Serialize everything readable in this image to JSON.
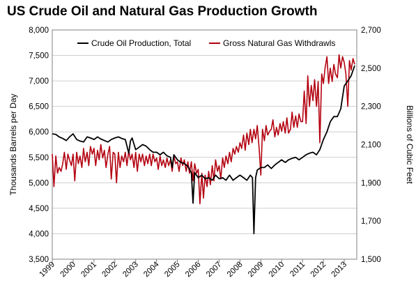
{
  "chart_data": {
    "type": "line",
    "title": "US Crude Oil and Natural Gas Production Growth",
    "ylabel": "Thousands Barrels per Day",
    "y2label": "Billions of Cubic Feet",
    "ylim": [
      3500,
      8000
    ],
    "y2lim": [
      1500,
      2700
    ],
    "xlim": [
      1999,
      2013.6
    ],
    "grid": true,
    "legend": "top",
    "x_ticks": [
      "1999",
      "2000",
      "2001",
      "2002",
      "2003",
      "2004",
      "2005",
      "2006",
      "2007",
      "2008",
      "2009",
      "2010",
      "2011",
      "2012",
      "2013"
    ],
    "y_ticks": [
      "3,500",
      "4,000",
      "4,500",
      "5,000",
      "5,500",
      "6,000",
      "6,500",
      "7,000",
      "7,500",
      "8,000"
    ],
    "y2_ticks": [
      "1,500",
      "1,700",
      "1,900",
      "2,100",
      "2,300",
      "2,500",
      "2,700"
    ],
    "series": [
      {
        "name": "Crude Oil Production, Total",
        "axis": "left",
        "color": "#000000",
        "x": [
          1999.0,
          1999.17,
          1999.33,
          1999.5,
          1999.67,
          1999.83,
          2000.0,
          2000.17,
          2000.33,
          2000.5,
          2000.67,
          2000.83,
          2001.0,
          2001.17,
          2001.33,
          2001.5,
          2001.67,
          2001.83,
          2002.0,
          2002.17,
          2002.33,
          2002.5,
          2002.67,
          2002.75,
          2002.83,
          2003.0,
          2003.17,
          2003.33,
          2003.5,
          2003.67,
          2003.83,
          2004.0,
          2004.17,
          2004.33,
          2004.5,
          2004.67,
          2004.75,
          2004.83,
          2005.0,
          2005.17,
          2005.33,
          2005.5,
          2005.67,
          2005.75,
          2005.83,
          2006.0,
          2006.17,
          2006.33,
          2006.5,
          2006.67,
          2006.83,
          2007.0,
          2007.17,
          2007.33,
          2007.5,
          2007.67,
          2007.83,
          2008.0,
          2008.17,
          2008.33,
          2008.5,
          2008.6,
          2008.67,
          2008.75,
          2008.83,
          2009.0,
          2009.17,
          2009.33,
          2009.5,
          2009.67,
          2009.83,
          2010.0,
          2010.17,
          2010.33,
          2010.5,
          2010.67,
          2010.83,
          2011.0,
          2011.17,
          2011.33,
          2011.5,
          2011.67,
          2011.83,
          2012.0,
          2012.17,
          2012.33,
          2012.5,
          2012.67,
          2012.83,
          2013.0,
          2013.17,
          2013.33,
          2013.5
        ],
        "values": [
          5960,
          5950,
          5900,
          5870,
          5830,
          5900,
          5960,
          5850,
          5820,
          5800,
          5900,
          5880,
          5850,
          5900,
          5860,
          5830,
          5800,
          5850,
          5880,
          5900,
          5870,
          5850,
          5580,
          5820,
          5880,
          5650,
          5700,
          5750,
          5720,
          5650,
          5600,
          5600,
          5550,
          5600,
          5530,
          5500,
          5300,
          5550,
          5450,
          5400,
          5380,
          5320,
          5200,
          4600,
          5200,
          5100,
          5150,
          5080,
          5100,
          5050,
          5150,
          5080,
          5100,
          5050,
          5150,
          5050,
          5100,
          5150,
          5100,
          5050,
          5150,
          5100,
          4000,
          5100,
          5250,
          5300,
          5300,
          5350,
          5280,
          5350,
          5400,
          5450,
          5400,
          5450,
          5480,
          5500,
          5450,
          5500,
          5550,
          5580,
          5600,
          5550,
          5650,
          5850,
          6000,
          6200,
          6300,
          6300,
          6450,
          6900,
          7000,
          7100,
          7300
        ]
      },
      {
        "name": "Gross Natural Gas Withdrawls",
        "axis": "right",
        "color": "#b3000f",
        "x": [
          1999.0,
          1999.08,
          1999.17,
          1999.25,
          1999.33,
          1999.42,
          1999.5,
          1999.58,
          1999.67,
          1999.75,
          1999.83,
          1999.92,
          2000.0,
          2000.08,
          2000.17,
          2000.25,
          2000.33,
          2000.42,
          2000.5,
          2000.58,
          2000.67,
          2000.75,
          2000.83,
          2000.92,
          2001.0,
          2001.08,
          2001.17,
          2001.25,
          2001.33,
          2001.42,
          2001.5,
          2001.58,
          2001.67,
          2001.75,
          2001.83,
          2001.92,
          2002.0,
          2002.08,
          2002.17,
          2002.25,
          2002.33,
          2002.42,
          2002.5,
          2002.58,
          2002.67,
          2002.75,
          2002.83,
          2002.92,
          2003.0,
          2003.08,
          2003.17,
          2003.25,
          2003.33,
          2003.42,
          2003.5,
          2003.58,
          2003.67,
          2003.75,
          2003.83,
          2003.92,
          2004.0,
          2004.08,
          2004.17,
          2004.25,
          2004.33,
          2004.42,
          2004.5,
          2004.58,
          2004.67,
          2004.75,
          2004.83,
          2004.92,
          2005.0,
          2005.08,
          2005.17,
          2005.25,
          2005.33,
          2005.42,
          2005.5,
          2005.58,
          2005.67,
          2005.75,
          2005.83,
          2005.92,
          2006.0,
          2006.08,
          2006.17,
          2006.25,
          2006.33,
          2006.42,
          2006.5,
          2006.58,
          2006.67,
          2006.75,
          2006.83,
          2006.92,
          2007.0,
          2007.08,
          2007.17,
          2007.25,
          2007.33,
          2007.42,
          2007.5,
          2007.58,
          2007.67,
          2007.75,
          2007.83,
          2007.92,
          2008.0,
          2008.08,
          2008.17,
          2008.25,
          2008.33,
          2008.42,
          2008.5,
          2008.58,
          2008.67,
          2008.75,
          2008.83,
          2008.92,
          2009.0,
          2009.08,
          2009.17,
          2009.25,
          2009.33,
          2009.42,
          2009.5,
          2009.58,
          2009.67,
          2009.75,
          2009.83,
          2009.92,
          2010.0,
          2010.08,
          2010.17,
          2010.25,
          2010.33,
          2010.42,
          2010.5,
          2010.58,
          2010.67,
          2010.75,
          2010.83,
          2010.92,
          2011.0,
          2011.08,
          2011.17,
          2011.25,
          2011.33,
          2011.42,
          2011.5,
          2011.58,
          2011.67,
          2011.75,
          2011.83,
          2011.92,
          2012.0,
          2012.08,
          2012.17,
          2012.25,
          2012.33,
          2012.42,
          2012.5,
          2012.58,
          2012.67,
          2012.75,
          2012.83,
          2012.92,
          2013.0,
          2013.08,
          2013.17,
          2013.25,
          2013.33,
          2013.42,
          2013.5
        ],
        "values": [
          2050,
          1880,
          2040,
          1950,
          1980,
          1960,
          2000,
          2060,
          1970,
          2050,
          2020,
          1990,
          2050,
          1910,
          2060,
          2000,
          2040,
          1980,
          2080,
          2010,
          2060,
          1990,
          2090,
          2050,
          2080,
          1990,
          2070,
          2020,
          2100,
          2030,
          2070,
          1980,
          2050,
          2090,
          1920,
          2060,
          2050,
          1900,
          2060,
          1980,
          2040,
          2010,
          2060,
          1990,
          2070,
          2020,
          2050,
          1980,
          2060,
          1960,
          2050,
          2010,
          2050,
          1990,
          2040,
          2000,
          2050,
          1990,
          2050,
          2010,
          2030,
          1970,
          2040,
          1990,
          2020,
          1980,
          2030,
          1990,
          2020,
          1960,
          2040,
          2000,
          2010,
          1960,
          2030,
          1990,
          2020,
          1960,
          2010,
          1950,
          2010,
          1910,
          2000,
          1950,
          1970,
          1790,
          1950,
          1820,
          1940,
          1880,
          1960,
          1890,
          1990,
          1910,
          2020,
          1960,
          1990,
          1920,
          2030,
          1980,
          2040,
          2000,
          2060,
          2010,
          2080,
          2050,
          2090,
          2060,
          2110,
          2080,
          2150,
          2070,
          2160,
          2100,
          2180,
          2110,
          2180,
          2130,
          2200,
          2080,
          1940,
          2180,
          2120,
          2200,
          2150,
          2170,
          2180,
          2230,
          2140,
          2190,
          2150,
          2210,
          2170,
          2220,
          2160,
          2240,
          2160,
          2180,
          2270,
          2190,
          2250,
          2190,
          2260,
          2220,
          2220,
          2380,
          2210,
          2460,
          2300,
          2410,
          2330,
          2440,
          2300,
          2430,
          2110,
          2470,
          2420,
          2500,
          2560,
          2420,
          2500,
          2430,
          2520,
          2470,
          2450,
          2570,
          2500,
          2560,
          2530,
          2470,
          2300,
          2540,
          2490,
          2550,
          2520
        ]
      }
    ]
  }
}
